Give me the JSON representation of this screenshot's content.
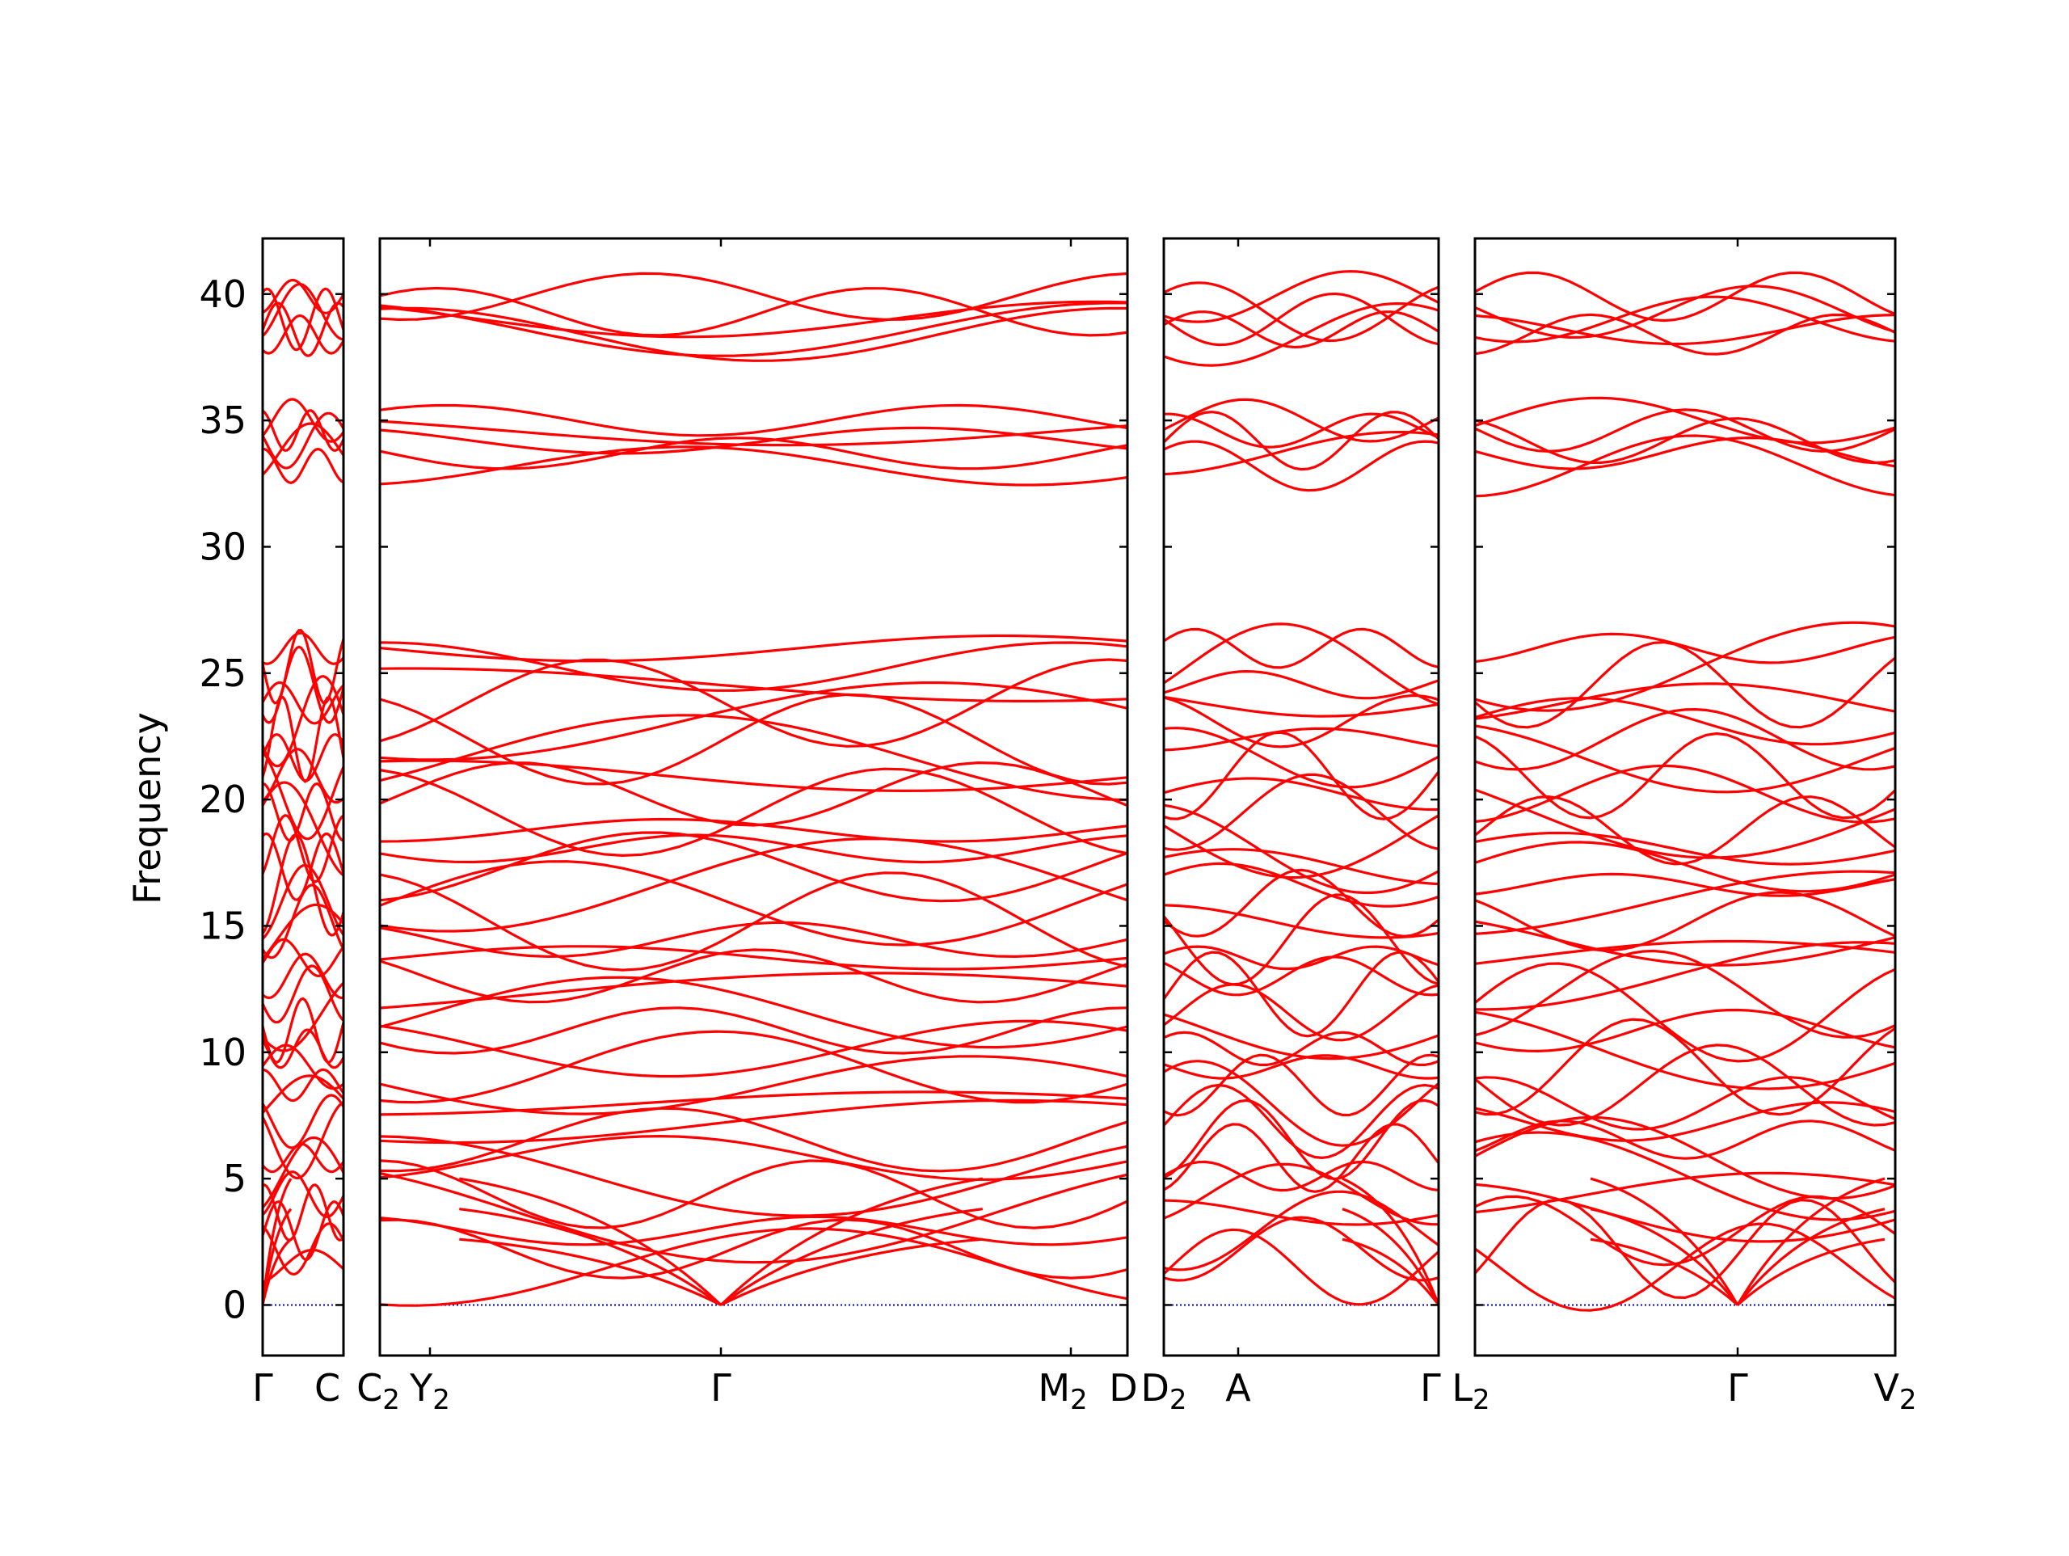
{
  "chart_data": {
    "type": "line",
    "title": "",
    "ylabel": "Frequency",
    "xlabel": "",
    "ylim": [
      -2,
      42.2
    ],
    "y_ticks": [
      0,
      5,
      10,
      15,
      20,
      25,
      30,
      35,
      40
    ],
    "line_color": "#ff0000",
    "zero_line_color": "#0000cc",
    "grid": false,
    "legend": "none",
    "panels": [
      {
        "name": "panel-1",
        "labels": [
          {
            "base": "Γ",
            "sub": ""
          },
          {
            "base": "C",
            "sub": ""
          }
        ]
      },
      {
        "name": "panel-2",
        "labels": [
          {
            "base": "C",
            "sub": "2"
          },
          {
            "base": "Y",
            "sub": "2"
          },
          {
            "base": "Γ",
            "sub": ""
          },
          {
            "base": "M",
            "sub": "2"
          },
          {
            "base": "D",
            "sub": ""
          }
        ]
      },
      {
        "name": "panel-3",
        "labels": [
          {
            "base": "D",
            "sub": "2"
          },
          {
            "base": "A",
            "sub": ""
          },
          {
            "base": "Γ",
            "sub": ""
          }
        ]
      },
      {
        "name": "panel-4",
        "labels": [
          {
            "base": "L",
            "sub": "2"
          },
          {
            "base": "Γ",
            "sub": ""
          },
          {
            "base": "V",
            "sub": "2"
          }
        ]
      }
    ],
    "bands_description_values": {
      "optical_high": [
        38.4,
        38.6,
        39.0,
        39.3,
        39.9
      ],
      "optical_mid": [
        33.2,
        33.7,
        34.2,
        34.6,
        35.0
      ],
      "optical_low_range": [
        0,
        26.8
      ],
      "acoustic_zero_points": [
        "Γ"
      ]
    }
  }
}
